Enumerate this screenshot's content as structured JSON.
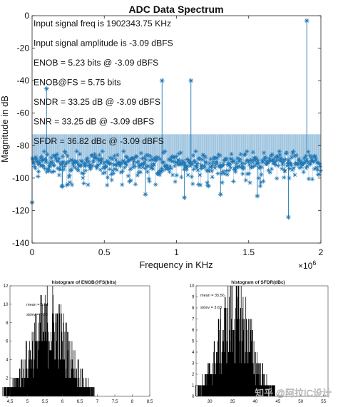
{
  "chart_data": [
    {
      "type": "scatter",
      "title": "ADC Data Spectrum",
      "xlabel": "Frequency in KHz",
      "ylabel": "Magnitude in dB",
      "x_scale_label": "×10",
      "x_scale_exponent": "6",
      "xlim": [
        0,
        2000000
      ],
      "ylim": [
        -140,
        0
      ],
      "xticks": [
        "0",
        "0.5",
        "1",
        "1.5",
        "2"
      ],
      "yticks": [
        "0",
        "-20",
        "-40",
        "-60",
        "-80",
        "-100",
        "-120",
        "-140"
      ],
      "grid": false,
      "color": "#1f77b4",
      "annotations": [
        "Input signal freq is 1902343.75 KHz",
        "Input signal amplitude is -3.09 dBFS",
        "ENOB = 5.23 bits @ -3.09 dBFS",
        "ENOB@FS = 5.75 bits",
        "SNDR = 33.25 dB @ -3.09 dBFS",
        "SNR = 33.25 dB @ -3.09 dBFS",
        "SFDR = 36.82 dBc @ -3.09 dBFS"
      ],
      "noise_floor_range_db": [
        -100,
        -83
      ],
      "spurs": [
        {
          "x": 1902343.75,
          "y": -3.09
        },
        {
          "x": 100000,
          "y": -45
        },
        {
          "x": 900000,
          "y": -40
        },
        {
          "x": 1100000,
          "y": -40
        },
        {
          "x": 0,
          "y": -115
        },
        {
          "x": 1775000,
          "y": -124
        },
        {
          "x": 1560000,
          "y": -111
        },
        {
          "x": 1055000,
          "y": -112
        },
        {
          "x": 785000,
          "y": -110
        },
        {
          "x": 210000,
          "y": -105
        },
        {
          "x": 1305000,
          "y": -110
        }
      ]
    },
    {
      "type": "bar",
      "title": "histogram of ENOB@FS(bits)",
      "xlim": [
        4.5,
        8.5
      ],
      "ylim": [
        0,
        12
      ],
      "xticks": [
        "4.5",
        "5",
        "5.5",
        "6",
        "6.5",
        "7",
        "7.5",
        "8",
        "8.5"
      ],
      "yticks": [
        "0",
        "2",
        "4",
        "6",
        "8",
        "10",
        "12"
      ],
      "stats": [
        "mean = 5.64",
        "stdev = 0.55"
      ],
      "mean": 5.64,
      "stdev": 0.55,
      "peak": 8.5
    },
    {
      "type": "bar",
      "title": "histogram of SFDR(dBc)",
      "xlim": [
        27,
        56
      ],
      "ylim": [
        0,
        10
      ],
      "xticks": [
        "30",
        "35",
        "40",
        "45",
        "50",
        "55"
      ],
      "yticks": [
        "0",
        "1",
        "2",
        "3",
        "4",
        "5",
        "6",
        "7",
        "8",
        "9",
        "10"
      ],
      "stats": [
        "mean = 35.56",
        "stdev = 3.63"
      ],
      "mean": 35.56,
      "stdev": 3.63,
      "peak": 8
    }
  ],
  "watermark": {
    "text": "知乎 @阿拉IC设计"
  }
}
